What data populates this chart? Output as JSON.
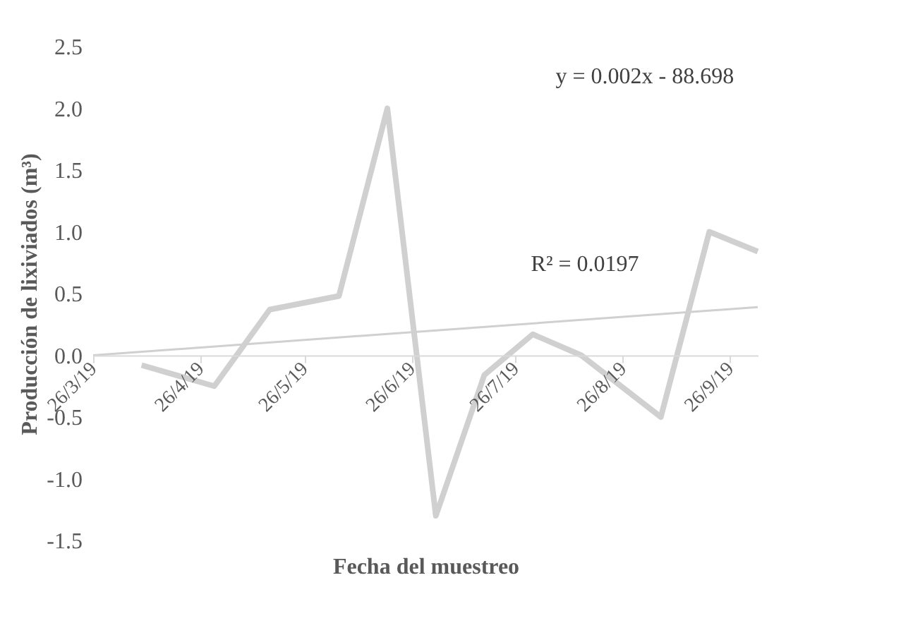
{
  "chart_data": {
    "type": "line",
    "xlabel": "Fecha del muestreo",
    "ylabel": "Producción de lixiviados (m³)",
    "x": [
      "2019-04-09",
      "2019-04-30",
      "2019-05-16",
      "2019-06-05",
      "2019-06-19",
      "2019-07-03",
      "2019-07-17",
      "2019-07-31",
      "2019-08-14",
      "2019-09-06",
      "2019-09-20",
      "2019-10-04"
    ],
    "series": [
      {
        "color": "#d0d0d0",
        "values": [
          -0.08,
          -0.25,
          0.37,
          0.48,
          2.0,
          -1.3,
          -0.16,
          0.17,
          0.0,
          -0.5,
          1.0,
          0.84
        ]
      },
      {
        "type": "line",
        "color": "#d0d0d0",
        "x": [
          "2019-03-26",
          "2019-10-04"
        ],
        "values": [
          0.0,
          0.39
        ]
      }
    ],
    "xlim": [
      "2019-03-26",
      "2019-10-04"
    ],
    "xticks": [
      {
        "value": "2019-03-26",
        "label": "26/3/19"
      },
      {
        "value": "2019-04-26",
        "label": "26/4/19"
      },
      {
        "value": "2019-05-26",
        "label": "26/5/19"
      },
      {
        "value": "2019-06-26",
        "label": "26/6/19"
      },
      {
        "value": "2019-07-26",
        "label": "26/7/19"
      },
      {
        "value": "2019-08-26",
        "label": "26/8/19"
      },
      {
        "value": "2019-09-26",
        "label": "26/9/19"
      }
    ],
    "ylim": [
      -1.5,
      2.5
    ],
    "yticks": [
      {
        "value": -1.5,
        "label": "-1.5"
      },
      {
        "value": -1.0,
        "label": "-1.0"
      },
      {
        "value": -0.5,
        "label": "-0.5"
      },
      {
        "value": 0,
        "label": "0.0"
      },
      {
        "value": 0.5,
        "label": "0.5"
      },
      {
        "value": 1.0,
        "label": "1.0"
      },
      {
        "value": 1.5,
        "label": "1.5"
      },
      {
        "value": 2.0,
        "label": "2.0"
      },
      {
        "value": 2.5,
        "label": "2.5"
      }
    ],
    "annotations": [
      "y = 0.002x - 88.698",
      "R² = 0.0197"
    ],
    "grid": false,
    "marker": "none",
    "line_style": "solid"
  }
}
